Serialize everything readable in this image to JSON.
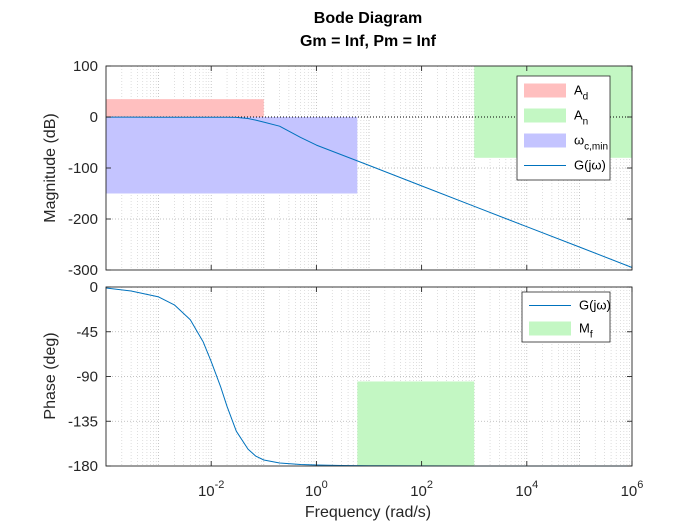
{
  "chart_data": {
    "title": "Bode Diagram",
    "subtitle": "Gm = Inf,  Pm = Inf",
    "xlabel": "Frequency  (rad/s)",
    "x_scale": "log",
    "x_range": [
      0.0001,
      1000000
    ],
    "x_ticks": [
      0.01,
      1,
      100,
      10000,
      1000000
    ],
    "x_tick_labels": [
      {
        "base": "10",
        "exp": "-2"
      },
      {
        "base": "10",
        "exp": "0"
      },
      {
        "base": "10",
        "exp": "2"
      },
      {
        "base": "10",
        "exp": "4"
      },
      {
        "base": "10",
        "exp": "6"
      }
    ],
    "grid": true,
    "colors": {
      "line": "#0072BD",
      "a_d": "#ffbfbf",
      "a_n": "#c3f7c3",
      "omega": "#c4c4ff",
      "m_f": "#c3f7c3",
      "axes": "#262626"
    },
    "magnitude": {
      "type": "line",
      "ylabel": "Magnitude (dB)",
      "ylim": [
        -300,
        100
      ],
      "y_ticks": [
        100,
        0,
        -100,
        -200,
        -300
      ],
      "y_tick_labels": [
        "100",
        "0",
        "-100",
        "-200",
        "-300"
      ],
      "zero_dotted_line": true,
      "legend_position": "top-right",
      "legend": [
        {
          "key": "a_d",
          "kind": "patch",
          "text": "A",
          "sub": "d"
        },
        {
          "key": "a_n",
          "kind": "patch",
          "text": "A",
          "sub": "n"
        },
        {
          "key": "omega",
          "kind": "patch",
          "text": "ω",
          "sub": "c,min"
        },
        {
          "key": "line",
          "kind": "line",
          "text": "G(jω)",
          "sub": ""
        }
      ],
      "regions": [
        {
          "key": "a_d",
          "x": [
            0.0001,
            0.1
          ],
          "y": [
            0,
            35
          ]
        },
        {
          "key": "a_n",
          "x": [
            1000,
            1000000
          ],
          "y": [
            -80,
            100
          ]
        },
        {
          "key": "omega",
          "x": [
            0.0001,
            6
          ],
          "y": [
            -150,
            0
          ]
        }
      ],
      "series": {
        "x": [
          0.0001,
          0.001,
          0.01,
          0.02,
          0.03,
          0.05,
          0.07,
          0.1,
          0.2,
          0.5,
          1,
          10,
          100,
          1000,
          10000,
          100000,
          1000000
        ],
        "y": [
          -0.2,
          -0.3,
          -0.3,
          -0.4,
          -0.8,
          -3,
          -6,
          -10,
          -18,
          -40,
          -55,
          -95,
          -135,
          -175,
          -215,
          -255,
          -295
        ]
      }
    },
    "phase": {
      "type": "line",
      "ylabel": "Phase (deg)",
      "ylim": [
        -180,
        0
      ],
      "y_ticks": [
        0,
        -45,
        -90,
        -135,
        -180
      ],
      "y_tick_labels": [
        "0",
        "-45",
        "-90",
        "-135",
        "-180"
      ],
      "legend_position": "top-right",
      "legend": [
        {
          "key": "line",
          "kind": "line",
          "text": "G(jω)",
          "sub": ""
        },
        {
          "key": "m_f",
          "kind": "patch",
          "text": "M",
          "sub": "f"
        }
      ],
      "regions": [
        {
          "key": "m_f",
          "x": [
            6,
            1000
          ],
          "y": [
            -180,
            -95
          ]
        }
      ],
      "series": {
        "x": [
          0.0001,
          0.0003,
          0.001,
          0.002,
          0.004,
          0.007,
          0.01,
          0.015,
          0.02,
          0.03,
          0.05,
          0.07,
          0.1,
          0.2,
          0.5,
          1,
          3,
          10,
          100,
          1000,
          10000,
          100000,
          1000000
        ],
        "y": [
          -1,
          -4,
          -10,
          -18,
          -33,
          -55,
          -75,
          -100,
          -120,
          -145,
          -163,
          -170,
          -174,
          -177,
          -178.5,
          -179,
          -179.5,
          -179.7,
          -179.9,
          -180,
          -180,
          -180,
          -180
        ]
      }
    }
  }
}
